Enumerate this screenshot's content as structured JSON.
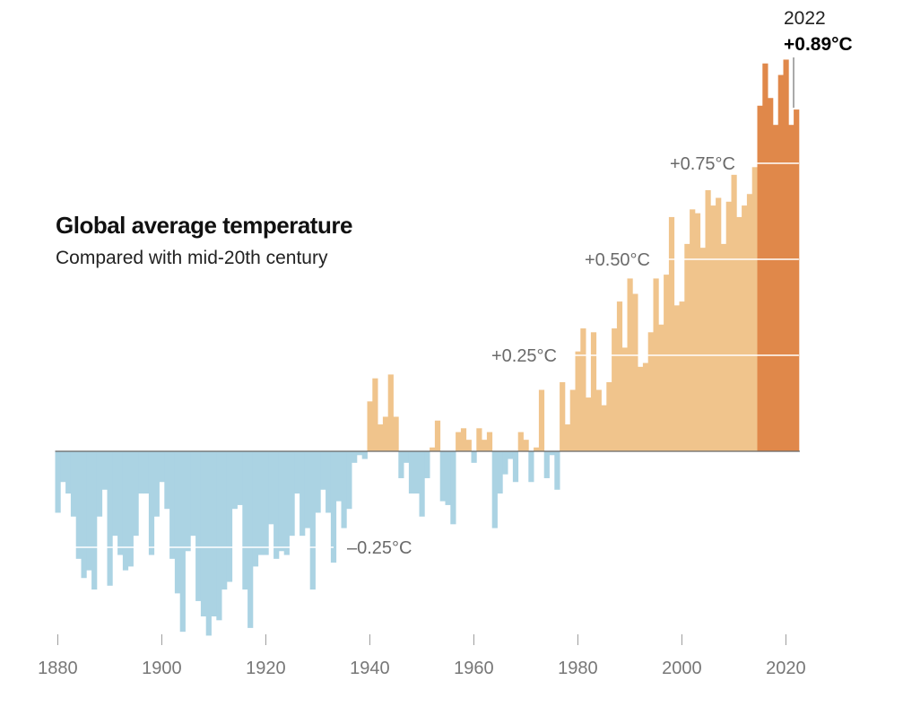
{
  "title": "Global average temperature",
  "subtitle": "Compared with mid-20th century",
  "annotation": {
    "year": "2022",
    "value": "+0.89°C"
  },
  "chart_data": {
    "type": "bar",
    "title": "Global average temperature",
    "subtitle": "Compared with mid-20th century",
    "unit": "°C",
    "years": [
      1880,
      1881,
      1882,
      1883,
      1884,
      1885,
      1886,
      1887,
      1888,
      1889,
      1890,
      1891,
      1892,
      1893,
      1894,
      1895,
      1896,
      1897,
      1898,
      1899,
      1900,
      1901,
      1902,
      1903,
      1904,
      1905,
      1906,
      1907,
      1908,
      1909,
      1910,
      1911,
      1912,
      1913,
      1914,
      1915,
      1916,
      1917,
      1918,
      1919,
      1920,
      1921,
      1922,
      1923,
      1924,
      1925,
      1926,
      1927,
      1928,
      1929,
      1930,
      1931,
      1932,
      1933,
      1934,
      1935,
      1936,
      1937,
      1938,
      1939,
      1940,
      1941,
      1942,
      1943,
      1944,
      1945,
      1946,
      1947,
      1948,
      1949,
      1950,
      1951,
      1952,
      1953,
      1954,
      1955,
      1956,
      1957,
      1958,
      1959,
      1960,
      1961,
      1962,
      1963,
      1964,
      1965,
      1966,
      1967,
      1968,
      1969,
      1970,
      1971,
      1972,
      1973,
      1974,
      1975,
      1976,
      1977,
      1978,
      1979,
      1980,
      1981,
      1982,
      1983,
      1984,
      1985,
      1986,
      1987,
      1988,
      1989,
      1990,
      1991,
      1992,
      1993,
      1994,
      1995,
      1996,
      1997,
      1998,
      1999,
      2000,
      2001,
      2002,
      2003,
      2004,
      2005,
      2006,
      2007,
      2008,
      2009,
      2010,
      2011,
      2012,
      2013,
      2014,
      2015,
      2016,
      2017,
      2018,
      2019,
      2020,
      2021,
      2022
    ],
    "values": [
      -0.16,
      -0.08,
      -0.11,
      -0.17,
      -0.28,
      -0.33,
      -0.31,
      -0.36,
      -0.17,
      -0.1,
      -0.35,
      -0.22,
      -0.27,
      -0.31,
      -0.3,
      -0.22,
      -0.11,
      -0.11,
      -0.27,
      -0.17,
      -0.08,
      -0.15,
      -0.28,
      -0.37,
      -0.47,
      -0.26,
      -0.22,
      -0.39,
      -0.43,
      -0.48,
      -0.43,
      -0.44,
      -0.36,
      -0.34,
      -0.15,
      -0.14,
      -0.36,
      -0.46,
      -0.3,
      -0.27,
      -0.27,
      -0.19,
      -0.28,
      -0.26,
      -0.27,
      -0.22,
      -0.11,
      -0.22,
      -0.2,
      -0.36,
      -0.16,
      -0.1,
      -0.16,
      -0.29,
      -0.13,
      -0.2,
      -0.15,
      -0.03,
      -0.01,
      -0.02,
      0.13,
      0.19,
      0.07,
      0.09,
      0.2,
      0.09,
      -0.07,
      -0.03,
      -0.11,
      -0.11,
      -0.17,
      -0.07,
      0.01,
      0.08,
      -0.13,
      -0.14,
      -0.19,
      0.05,
      0.06,
      0.03,
      -0.03,
      0.06,
      0.03,
      0.05,
      -0.2,
      -0.11,
      -0.06,
      -0.02,
      -0.08,
      0.05,
      0.03,
      -0.08,
      0.01,
      0.16,
      -0.07,
      -0.01,
      -0.1,
      0.18,
      0.07,
      0.16,
      0.26,
      0.32,
      0.14,
      0.31,
      0.16,
      0.12,
      0.18,
      0.32,
      0.39,
      0.27,
      0.45,
      0.41,
      0.22,
      0.23,
      0.31,
      0.45,
      0.33,
      0.46,
      0.61,
      0.38,
      0.39,
      0.54,
      0.63,
      0.62,
      0.53,
      0.68,
      0.64,
      0.66,
      0.54,
      0.65,
      0.72,
      0.61,
      0.64,
      0.67,
      0.74,
      0.9,
      1.01,
      0.92,
      0.85,
      0.98,
      1.02,
      0.85,
      0.89
    ],
    "highlight_from_year": 2015,
    "reference_lines": [
      {
        "value": -0.25,
        "label": "–0.25°C"
      },
      {
        "value": 0.25,
        "label": "+0.25°C"
      },
      {
        "value": 0.5,
        "label": "+0.50°C"
      },
      {
        "value": 0.75,
        "label": "+0.75°C"
      }
    ],
    "x_ticks": [
      1880,
      1900,
      1920,
      1940,
      1960,
      1980,
      2000,
      2020
    ],
    "ylim": [
      -0.49,
      1.04
    ],
    "xlim": [
      1880,
      2022
    ],
    "colors": {
      "negative": "#abd3e3",
      "positive": "#f0c48c",
      "highlight": "#e0884a",
      "baseline": "#666666",
      "ref_line": "#ffffff",
      "ref_line_neg": "#ffffff",
      "tick_label": "#777777",
      "ref_label": "#6a6a6a"
    }
  }
}
